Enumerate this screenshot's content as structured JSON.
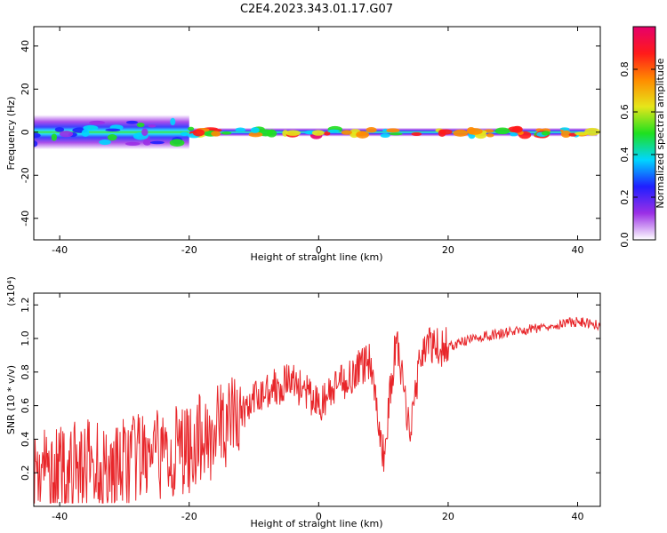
{
  "title": "C2E4.2023.343.01.17.G07",
  "colors": {
    "snr_line": "#e8262a"
  },
  "chart_data": [
    {
      "type": "heatmap",
      "xlabel": "Height of straight line (km)",
      "ylabel": "Frequency (Hz)",
      "xlim": [
        -44,
        43.5
      ],
      "ylim": [
        -50,
        49
      ],
      "x_ticks": [
        "-40",
        "-20",
        "0",
        "20",
        "40"
      ],
      "y_ticks": [
        "-40",
        "-20",
        "0",
        "20",
        "40"
      ],
      "colorbar": {
        "label": "Normalized spectral amplitude",
        "range": [
          0,
          1
        ],
        "ticks": [
          "0.0",
          "0.2",
          "0.4",
          "0.6",
          "0.8"
        ],
        "colormap": [
          "#ffffff",
          "#9b2fe6",
          "#1f1fff",
          "#00d6ff",
          "#1fe01f",
          "#e6e61a",
          "#ff8c00",
          "#ff1a1a",
          "#e6006b"
        ]
      },
      "band_summary": [
        {
          "x_range": [
            -44,
            -20
          ],
          "freq_center": 0,
          "freq_spread": 8,
          "peak_amplitude": 0.5
        },
        {
          "x_range": [
            -20,
            43
          ],
          "freq_center": 0,
          "freq_spread": 2,
          "peak_amplitude": 0.95
        }
      ]
    },
    {
      "type": "line",
      "xlabel": "Height of straight line (km)",
      "ylabel": "SNR (10 * v/v)",
      "scale_label": "(x10⁴)",
      "xlim": [
        -44,
        43.5
      ],
      "ylim": [
        0,
        1.27
      ],
      "x_ticks": [
        "-40",
        "-20",
        "0",
        "20",
        "40"
      ],
      "y_ticks": [
        "0.2",
        "0.4",
        "0.6",
        "0.8",
        "1.0",
        "1.2"
      ],
      "series": [
        {
          "x": [
            -44,
            -40,
            -36,
            -32,
            -28,
            -24,
            -20,
            -16,
            -12,
            -8,
            -4,
            0,
            4,
            8,
            10,
            12,
            14,
            16,
            20,
            24,
            28,
            32,
            36,
            40,
            43.5
          ],
          "y": [
            0.22,
            0.2,
            0.25,
            0.22,
            0.28,
            0.3,
            0.35,
            0.45,
            0.55,
            0.7,
            0.75,
            0.6,
            0.75,
            0.88,
            0.3,
            1.0,
            0.45,
            0.95,
            0.95,
            1.0,
            1.03,
            1.05,
            1.08,
            1.1,
            1.08
          ]
        }
      ]
    }
  ]
}
